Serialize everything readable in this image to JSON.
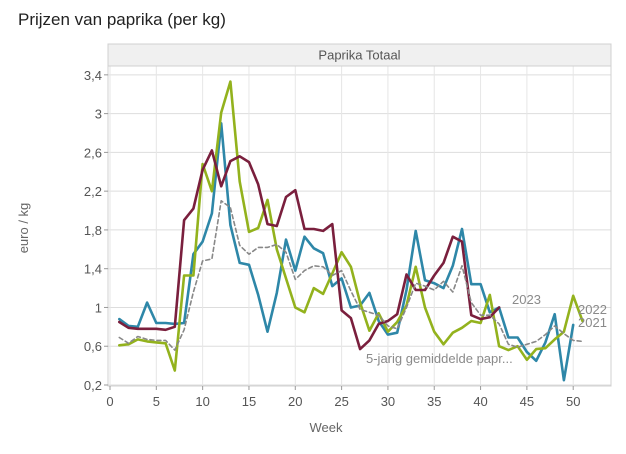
{
  "chart_data": {
    "type": "line",
    "title": "Prijzen van paprika (per kg)",
    "facet_title": "Paprika Totaal",
    "xlabel": "Week",
    "ylabel": "euro / kg",
    "xlim": [
      0,
      53
    ],
    "ylim": [
      0.2,
      3.45
    ],
    "xticks": [
      0,
      5,
      10,
      15,
      20,
      25,
      30,
      35,
      40,
      45,
      50
    ],
    "yticks": [
      0.2,
      0.6,
      1.0,
      1.4,
      1.8,
      2.2,
      2.6,
      3.0,
      3.4
    ],
    "ytick_labels": [
      "0,2",
      "0,6",
      "1",
      "1,4",
      "1,8",
      "2,2",
      "2,6",
      "3",
      "3,4"
    ],
    "grid": true,
    "series": [
      {
        "name": "2021",
        "color": "#2e87a8",
        "x": [
          1,
          2,
          3,
          4,
          5,
          6,
          7,
          8,
          9,
          10,
          11,
          12,
          13,
          14,
          15,
          16,
          17,
          18,
          19,
          20,
          21,
          22,
          23,
          24,
          25,
          26,
          27,
          28,
          29,
          30,
          31,
          32,
          33,
          34,
          35,
          36,
          37,
          38,
          39,
          40,
          41,
          42,
          43,
          44,
          45,
          46,
          47,
          48,
          49,
          50
        ],
        "y": [
          0.88,
          0.81,
          0.8,
          1.05,
          0.84,
          0.84,
          0.83,
          0.84,
          1.55,
          1.68,
          1.97,
          2.9,
          1.85,
          1.46,
          1.44,
          1.13,
          0.75,
          1.15,
          1.7,
          1.38,
          1.73,
          1.61,
          1.56,
          1.22,
          1.3,
          1.0,
          1.02,
          1.15,
          0.86,
          0.72,
          0.74,
          1.18,
          1.79,
          1.28,
          1.25,
          1.2,
          1.43,
          1.81,
          1.24,
          1.24,
          0.95,
          1.0,
          0.69,
          0.69,
          0.54,
          0.45,
          0.64,
          0.93,
          0.25,
          0.82
        ]
      },
      {
        "name": "2022",
        "color": "#93b21d",
        "x": [
          1,
          2,
          3,
          4,
          5,
          6,
          7,
          8,
          9,
          10,
          11,
          12,
          13,
          14,
          15,
          16,
          17,
          18,
          19,
          20,
          21,
          22,
          23,
          24,
          25,
          26,
          27,
          28,
          29,
          30,
          31,
          32,
          33,
          34,
          35,
          36,
          37,
          38,
          39,
          40,
          41,
          42,
          43,
          44,
          45,
          46,
          47,
          48,
          49,
          50,
          51
        ],
        "y": [
          0.61,
          0.62,
          0.67,
          0.65,
          0.64,
          0.63,
          0.35,
          1.33,
          1.33,
          2.48,
          2.2,
          3.01,
          3.33,
          2.3,
          1.78,
          1.82,
          2.11,
          1.6,
          1.3,
          1.0,
          0.95,
          1.2,
          1.14,
          1.35,
          1.57,
          1.42,
          1.05,
          0.76,
          0.94,
          0.75,
          0.85,
          1.02,
          1.42,
          1.0,
          0.75,
          0.62,
          0.74,
          0.79,
          0.86,
          0.84,
          1.13,
          0.6,
          0.56,
          0.6,
          0.46,
          0.57,
          0.58,
          0.67,
          0.75,
          1.12,
          0.86
        ]
      },
      {
        "name": "2023",
        "color": "#7a1f3d",
        "x": [
          1,
          2,
          3,
          4,
          5,
          6,
          7,
          8,
          9,
          10,
          11,
          12,
          13,
          14,
          15,
          16,
          17,
          18,
          19,
          20,
          21,
          22,
          23,
          24,
          25,
          26,
          27,
          28,
          29,
          30,
          31,
          32,
          33,
          34,
          35,
          36,
          37,
          38,
          39,
          40,
          41,
          42
        ],
        "y": [
          0.85,
          0.79,
          0.78,
          0.78,
          0.78,
          0.77,
          0.8,
          1.9,
          2.02,
          2.42,
          2.62,
          2.25,
          2.51,
          2.56,
          2.5,
          2.27,
          1.86,
          1.84,
          2.14,
          2.21,
          1.81,
          1.81,
          1.79,
          1.86,
          0.97,
          0.89,
          0.57,
          0.66,
          0.83,
          0.86,
          0.93,
          1.34,
          1.18,
          1.18,
          1.33,
          1.46,
          1.73,
          1.68,
          0.92,
          0.88,
          0.9,
          1.0
        ]
      },
      {
        "name": "5-jarig gemiddelde papr...",
        "color": "#888888",
        "dashed": true,
        "x": [
          1,
          2,
          3,
          4,
          5,
          6,
          7,
          8,
          9,
          10,
          11,
          12,
          13,
          14,
          15,
          16,
          17,
          18,
          19,
          20,
          21,
          22,
          23,
          24,
          25,
          26,
          27,
          28,
          29,
          30,
          31,
          32,
          33,
          34,
          35,
          36,
          37,
          38,
          39,
          40,
          41,
          42,
          43,
          44,
          45,
          46,
          47,
          48,
          49,
          50,
          51
        ],
        "y": [
          0.69,
          0.63,
          0.7,
          0.67,
          0.66,
          0.66,
          0.56,
          0.77,
          1.16,
          1.48,
          1.5,
          2.1,
          2.03,
          1.64,
          1.55,
          1.62,
          1.62,
          1.65,
          1.57,
          1.29,
          1.38,
          1.43,
          1.42,
          1.33,
          1.38,
          1.17,
          0.98,
          0.95,
          0.92,
          0.81,
          0.78,
          1.0,
          1.25,
          1.22,
          1.18,
          1.27,
          1.16,
          1.43,
          1.05,
          0.92,
          0.92,
          0.83,
          0.62,
          0.59,
          0.62,
          0.65,
          0.72,
          0.81,
          0.73,
          0.66,
          0.65
        ]
      }
    ]
  }
}
